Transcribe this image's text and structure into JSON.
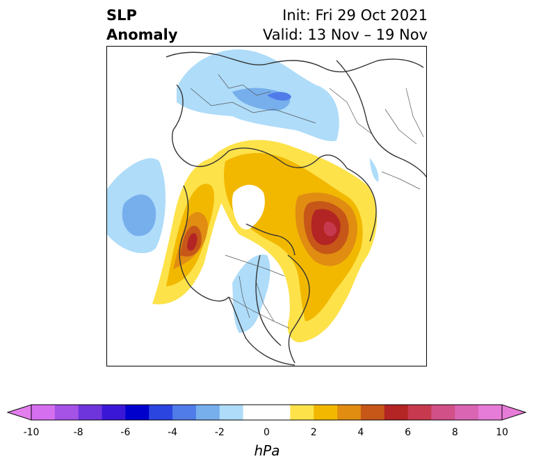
{
  "title": {
    "variable": "SLP",
    "subtitle": "Anomaly",
    "init": "Init: Fri 29 Oct 2021",
    "valid": "Valid: 13 Nov – 19 Nov"
  },
  "colorbar": {
    "unit": "hPa",
    "ticks": [
      "-10",
      "-8",
      "-6",
      "-4",
      "-2",
      "0",
      "2",
      "4",
      "6",
      "8",
      "10"
    ],
    "levels": [
      -10,
      -9,
      -8,
      -7,
      -6,
      -5,
      -4,
      -3,
      -2,
      -1,
      1,
      2,
      3,
      4,
      5,
      6,
      7,
      8,
      9,
      10
    ],
    "colors": [
      "#d56ff0",
      "#a552e6",
      "#6f35dd",
      "#3a17d6",
      "#0000cc",
      "#2a45e0",
      "#4f7ce9",
      "#77afed",
      "#aedcf9",
      "#ffffff",
      "#ffffff",
      "#fde24a",
      "#f2b800",
      "#e08d12",
      "#c75718",
      "#b32524",
      "#c7394f",
      "#d15088",
      "#da65b3",
      "#e77bd8"
    ],
    "extend_low_color": "#e27eed",
    "extend_high_color": "#e77bd8"
  },
  "map": {
    "projection": "north-polar stereographic",
    "palette": {
      "light_blue": "#aedcf9",
      "mid_blue": "#77afed",
      "blue": "#4f7ce9",
      "yellow": "#fde24a",
      "gold": "#f2b800",
      "orange": "#e08d12",
      "dark_orange": "#c75718",
      "red": "#b32524",
      "pink": "#c7394f",
      "coast": "#333333",
      "borders": "#555555"
    }
  }
}
